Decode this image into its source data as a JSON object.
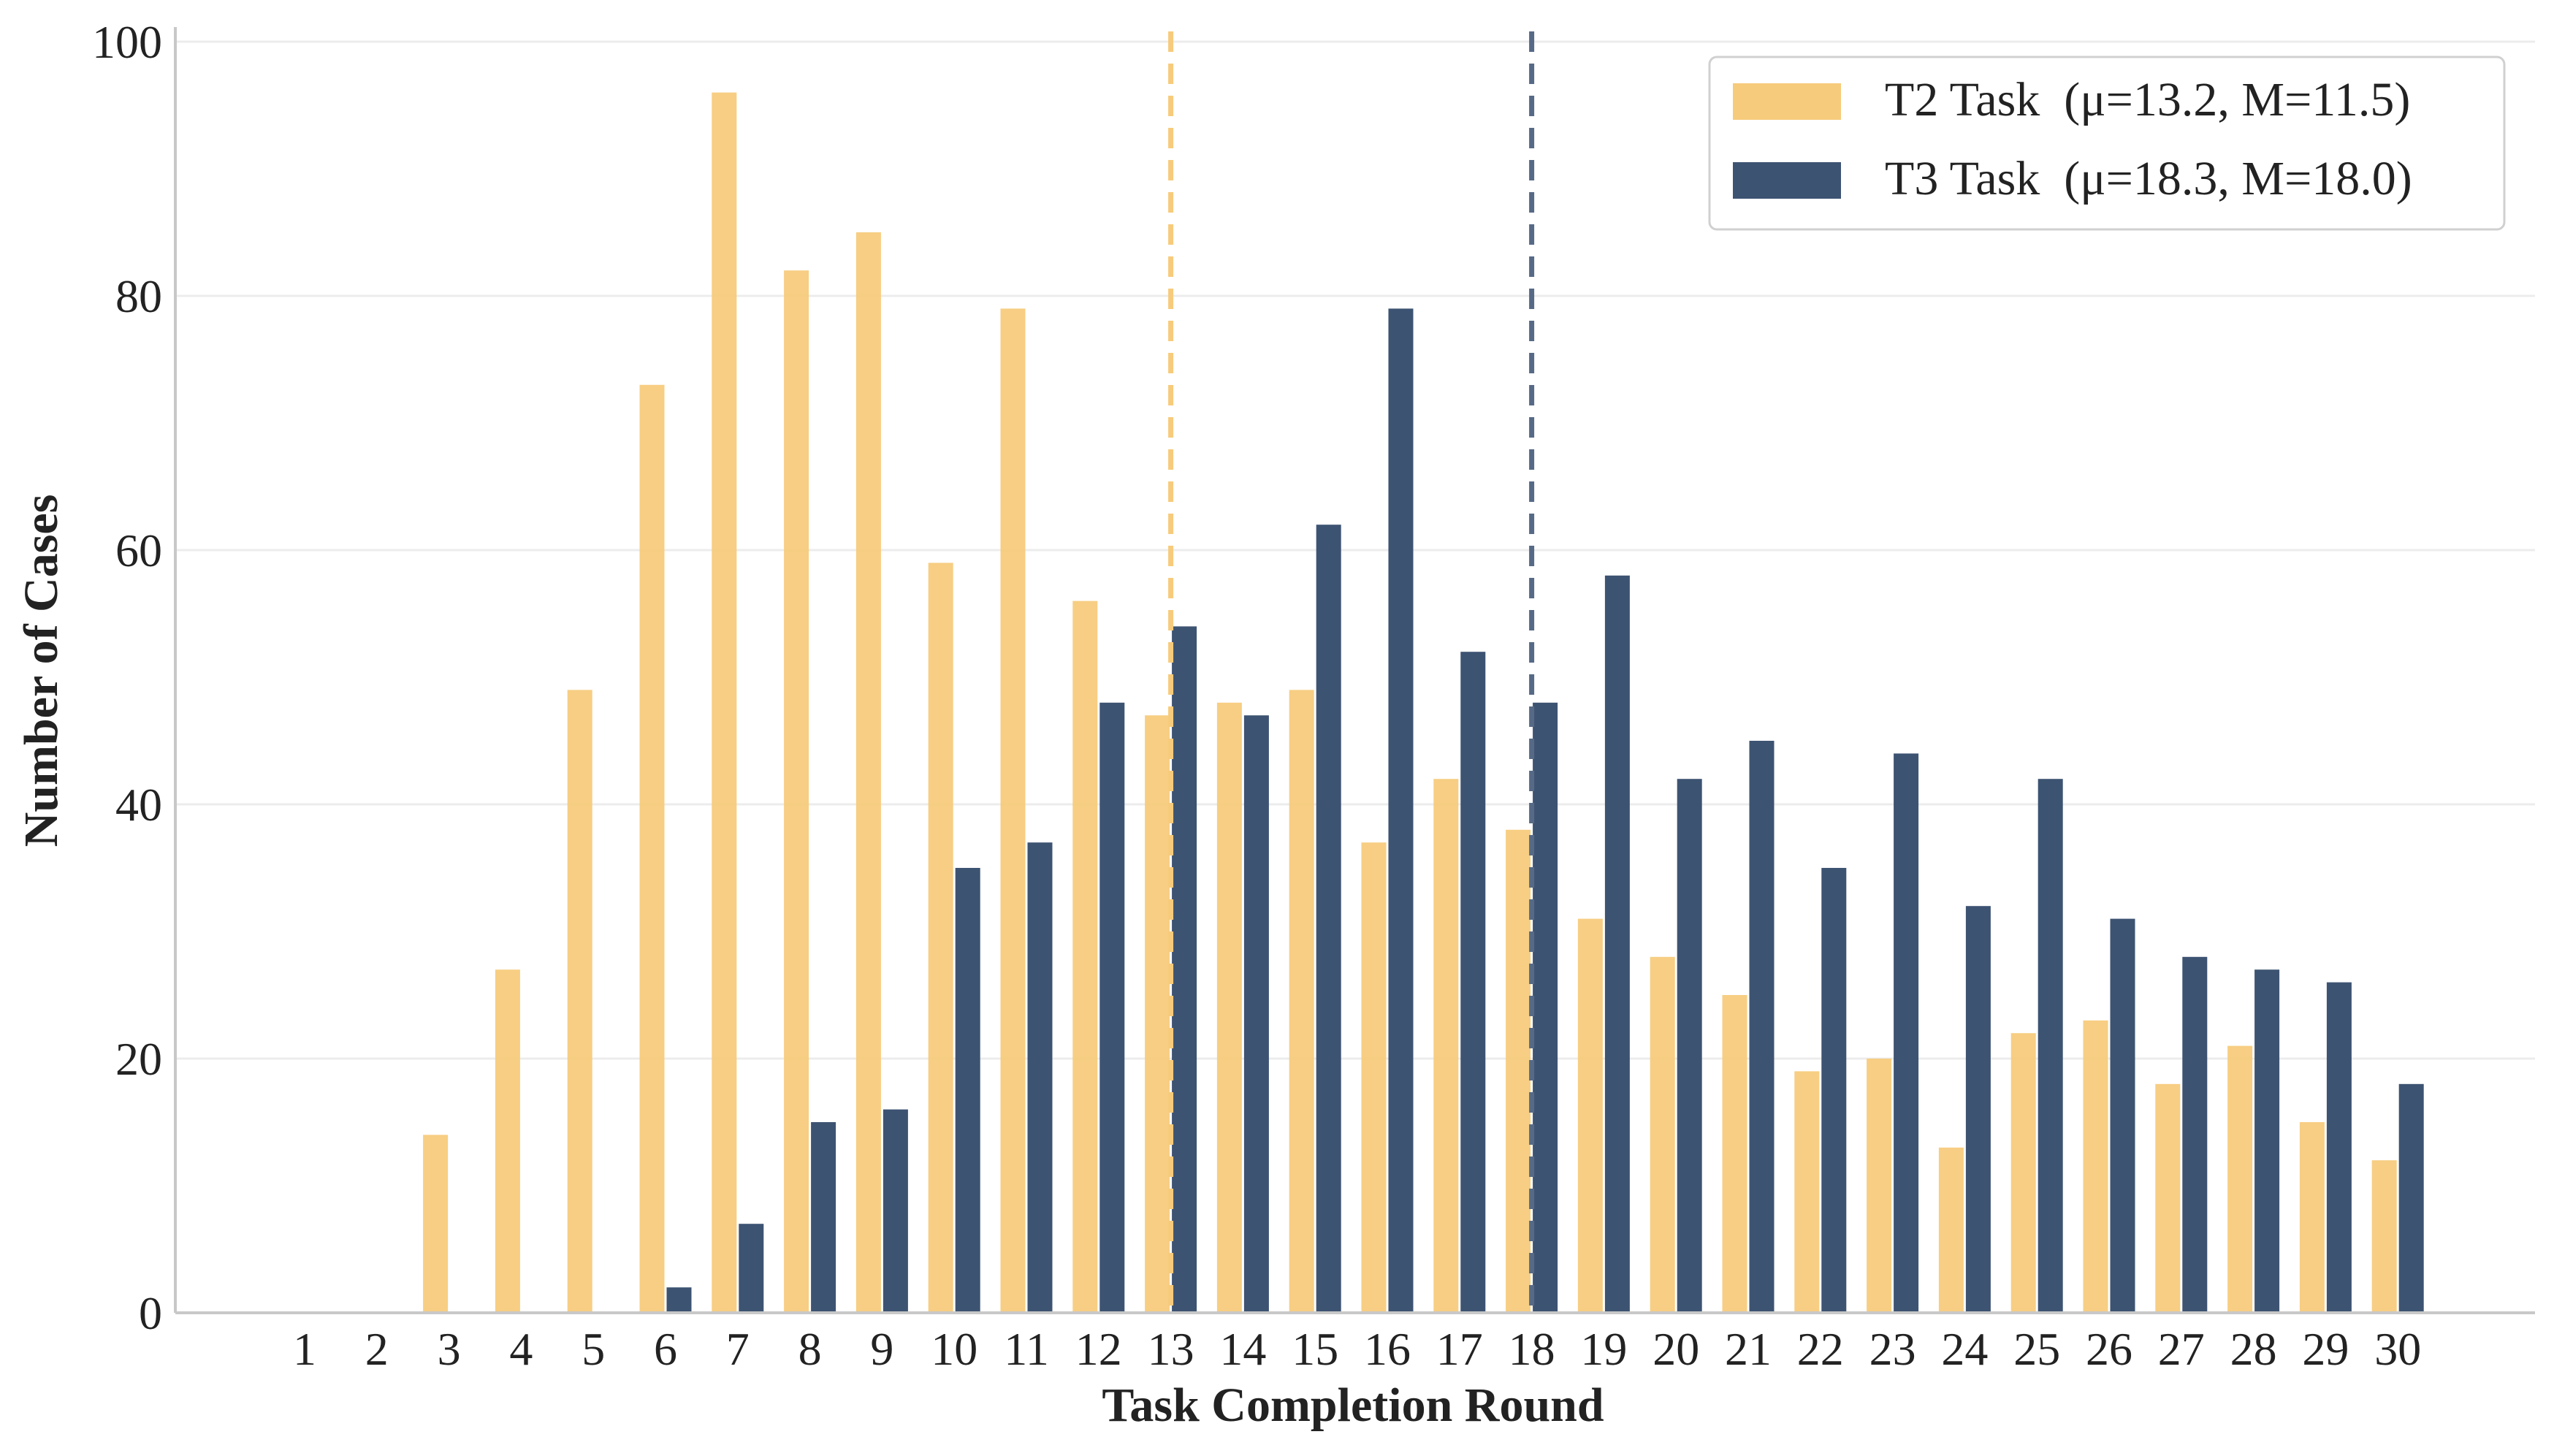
{
  "chart_data": {
    "type": "bar",
    "title": "",
    "xlabel": "Task Completion Round",
    "ylabel": "Number of Cases",
    "ylim": [
      0,
      100
    ],
    "yticks": [
      0,
      20,
      40,
      60,
      80,
      100
    ],
    "grid": "horizontal",
    "legend_position": "top-right",
    "categories": [
      "1",
      "2",
      "3",
      "4",
      "5",
      "6",
      "7",
      "8",
      "9",
      "10",
      "11",
      "12",
      "13",
      "14",
      "15",
      "16",
      "17",
      "18",
      "19",
      "20",
      "21",
      "22",
      "23",
      "24",
      "25",
      "26",
      "27",
      "28",
      "29",
      "30"
    ],
    "series": [
      {
        "name": "T2 Task",
        "legend_label": "T2 Task  (μ=13.2, M=11.5)",
        "color": "#F7CB7C",
        "mean_line": 13.2,
        "values": [
          0,
          0,
          14,
          27,
          49,
          73,
          96,
          82,
          85,
          59,
          79,
          56,
          47,
          48,
          49,
          37,
          42,
          38,
          31,
          28,
          25,
          19,
          20,
          13,
          22,
          23,
          18,
          21,
          15,
          12
        ]
      },
      {
        "name": "T3 Task",
        "legend_label": "T3 Task  (μ=18.3, M=18.0)",
        "color": "#3D5372",
        "mean_line": 18.3,
        "values": [
          0,
          0,
          0,
          0,
          0,
          2,
          7,
          15,
          16,
          35,
          37,
          48,
          54,
          47,
          62,
          79,
          52,
          48,
          58,
          42,
          45,
          35,
          44,
          32,
          42,
          31,
          28,
          27,
          26,
          18
        ]
      }
    ]
  }
}
